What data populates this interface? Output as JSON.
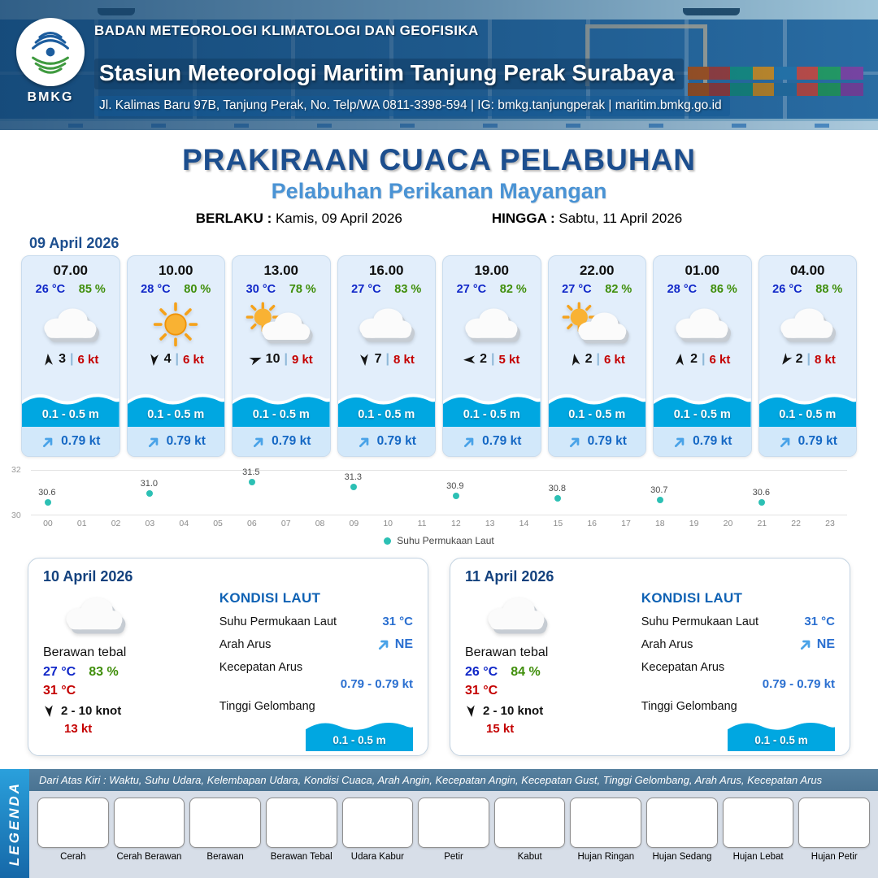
{
  "header": {
    "logo": "BMKG",
    "agency": "BADAN METEOROLOGI KLIMATOLOGI DAN GEOFISIKA",
    "station": "Stasiun Meteorologi Maritim Tanjung Perak Surabaya",
    "contact": "Jl. Kalimas Baru 97B, Tanjung Perak, No. Telp/WA 0811-3398-594 | IG: bmkg.tanjungperak | maritim.bmkg.go.id"
  },
  "title": {
    "main": "PRAKIRAAN CUACA PELABUHAN",
    "subtitle": "Pelabuhan Perikanan Mayangan",
    "valid_from_label": "BERLAKU :",
    "valid_from": "Kamis, 09 April 2026",
    "valid_to_label": "HINGGA :",
    "valid_to": "Sabtu, 11 April 2026"
  },
  "forecast": {
    "date": "09 April 2026",
    "cards": [
      {
        "time": "07.00",
        "temp": "26 °C",
        "humidity": "85 %",
        "icon": "cloudy",
        "wind_deg": 355,
        "wind_value": "3",
        "wind_speed": "6 kt",
        "wave_height": "0.1 - 0.5 m",
        "current_speed": "0.79 kt"
      },
      {
        "time": "10.00",
        "temp": "28 °C",
        "humidity": "80 %",
        "icon": "sunny",
        "wind_deg": 185,
        "wind_value": "4",
        "wind_speed": "6 kt",
        "wave_height": "0.1 - 0.5 m",
        "current_speed": "0.79 kt"
      },
      {
        "time": "13.00",
        "temp": "30 °C",
        "humidity": "78 %",
        "icon": "partly-cloudy",
        "wind_deg": 70,
        "wind_value": "10",
        "wind_speed": "9 kt",
        "wave_height": "0.1 - 0.5 m",
        "current_speed": "0.79 kt"
      },
      {
        "time": "16.00",
        "temp": "27 °C",
        "humidity": "83 %",
        "icon": "cloudy",
        "wind_deg": 175,
        "wind_value": "7",
        "wind_speed": "8 kt",
        "wave_height": "0.1 - 0.5 m",
        "current_speed": "0.79 kt"
      },
      {
        "time": "19.00",
        "temp": "27 °C",
        "humidity": "82 %",
        "icon": "cloudy",
        "wind_deg": 268,
        "wind_value": "2",
        "wind_speed": "5 kt",
        "wave_height": "0.1 - 0.5 m",
        "current_speed": "0.79 kt"
      },
      {
        "time": "22.00",
        "temp": "27 °C",
        "humidity": "82 %",
        "icon": "partly-cloudy",
        "wind_deg": 350,
        "wind_value": "2",
        "wind_speed": "6 kt",
        "wave_height": "0.1 - 0.5 m",
        "current_speed": "0.79 kt"
      },
      {
        "time": "01.00",
        "temp": "28 °C",
        "humidity": "86 %",
        "icon": "cloudy",
        "wind_deg": 5,
        "wind_value": "2",
        "wind_speed": "6 kt",
        "wave_height": "0.1 - 0.5 m",
        "current_speed": "0.79 kt"
      },
      {
        "time": "04.00",
        "temp": "26 °C",
        "humidity": "88 %",
        "icon": "cloudy",
        "wind_deg": 215,
        "wind_value": "2",
        "wind_speed": "8 kt",
        "wave_height": "0.1 - 0.5 m",
        "current_speed": "0.79 kt"
      }
    ]
  },
  "chart_data": {
    "type": "scatter",
    "title": "Suhu Permukaan Laut",
    "legend": "Suhu Permukaan Laut",
    "x_ticks": [
      "00",
      "01",
      "02",
      "03",
      "04",
      "05",
      "06",
      "07",
      "08",
      "09",
      "10",
      "11",
      "12",
      "13",
      "14",
      "15",
      "16",
      "17",
      "18",
      "19",
      "20",
      "21",
      "22",
      "23"
    ],
    "points": [
      {
        "hour": 0,
        "value": 30.6
      },
      {
        "hour": 3,
        "value": 31.0
      },
      {
        "hour": 6,
        "value": 31.5
      },
      {
        "hour": 9,
        "value": 31.3
      },
      {
        "hour": 12,
        "value": 30.9
      },
      {
        "hour": 15,
        "value": 30.8
      },
      {
        "hour": 18,
        "value": 30.7
      },
      {
        "hour": 21,
        "value": 30.6
      }
    ],
    "ylim": [
      30,
      32
    ],
    "y_ticks": [
      "32",
      "30"
    ],
    "grid": "top-bottom-only",
    "legend_position": "bottom-center",
    "dot_color": "#2cc0b4"
  },
  "daily": {
    "cards": [
      {
        "date": "10 April 2026",
        "icon": "cloudy",
        "condition": "Berawan tebal",
        "temp_min": "27 °C",
        "humidity": "83 %",
        "temp_max": "31 °C",
        "wind_deg": 175,
        "wind_range": "2  - 10 knot",
        "gust": "13 kt",
        "sea_title": "KONDISI LAUT",
        "sst_label": "Suhu Permukaan Laut",
        "sst": "31 °C",
        "current_dir_label": "Arah Arus",
        "current_dir": "NE",
        "current_speed_label": "Kecepatan Arus",
        "current_speed": "0.79  - 0.79 kt",
        "wave_label": "Tinggi Gelombang",
        "wave": "0.1 - 0.5 m"
      },
      {
        "date": "11 April 2026",
        "icon": "cloudy",
        "condition": "Berawan tebal",
        "temp_min": "26 °C",
        "humidity": "84 %",
        "temp_max": "31 °C",
        "wind_deg": 175,
        "wind_range": "2  - 10 knot",
        "gust": "15 kt",
        "sea_title": "KONDISI LAUT",
        "sst_label": "Suhu Permukaan Laut",
        "sst": "31 °C",
        "current_dir_label": "Arah Arus",
        "current_dir": "NE",
        "current_speed_label": "Kecepatan Arus",
        "current_speed": "0.79  - 0.79 kt",
        "wave_label": "Tinggi Gelombang",
        "wave": "0.1 - 0.5 m"
      }
    ]
  },
  "legend": {
    "title": "LEGENDA",
    "description": "Dari Atas Kiri : Waktu, Suhu Udara, Kelembapan Udara, Kondisi Cuaca, Arah Angin, Kecepatan Angin, Kecepatan Gust, Tinggi Gelombang, Arah Arus, Kecepatan Arus",
    "items": [
      {
        "label": "Cerah",
        "icon": "sunny"
      },
      {
        "label": "Cerah Berawan",
        "icon": "partly-cloudy"
      },
      {
        "label": "Berawan",
        "icon": "cloudy"
      },
      {
        "label": "Berawan Tebal",
        "icon": "cloudy-thick"
      },
      {
        "label": "Udara Kabur",
        "icon": "haze"
      },
      {
        "label": "Petir",
        "icon": "thunder"
      },
      {
        "label": "Kabut",
        "icon": "fog"
      },
      {
        "label": "Hujan Ringan",
        "icon": "rain-light"
      },
      {
        "label": "Hujan Sedang",
        "icon": "rain-medium"
      },
      {
        "label": "Hujan Lebat",
        "icon": "rain-heavy"
      },
      {
        "label": "Hujan Petir",
        "icon": "thunderstorm"
      }
    ]
  },
  "colors": {
    "accent_blue": "#1c4e8e",
    "subtitle_blue": "#4a93d4",
    "wave_blue": "#00a7e1",
    "temp_blue": "#1027c8",
    "humidity_green": "#3f8e0a",
    "alert_red": "#c40000",
    "sst_dot_teal": "#2cc0b4"
  }
}
